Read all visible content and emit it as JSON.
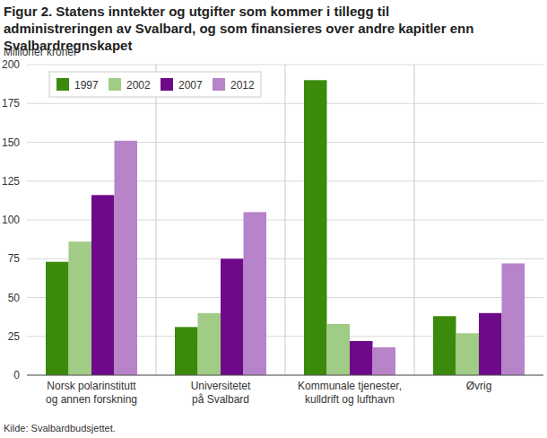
{
  "chart_data": {
    "type": "bar",
    "title": "Figur 2. Statens inntekter og utgifter som kommer i tillegg til administreringen av Svalbard, og som finansieres over andre kapitler enn Svalbardregnskapet",
    "y_label": "Millioner kroner",
    "source": "Kilde: Svalbardbudsjettet.",
    "categories": [
      "Norsk polarinstitutt og annen forskning",
      "Universitetet på Svalbard",
      "Kommunale tjenester, kulldrift og lufthavn",
      "Øvrig"
    ],
    "series": [
      {
        "name": "1997",
        "color": "#3b8a0b",
        "values": [
          73,
          31,
          190,
          38
        ]
      },
      {
        "name": "2002",
        "color": "#a0cc86",
        "values": [
          86,
          40,
          33,
          27
        ]
      },
      {
        "name": "2007",
        "color": "#6e0a8a",
        "values": [
          116,
          75,
          22,
          40
        ]
      },
      {
        "name": "2012",
        "color": "#b783c9",
        "values": [
          151,
          105,
          18,
          72
        ]
      }
    ],
    "ylim": [
      0,
      200
    ],
    "yticks": [
      0,
      25,
      50,
      75,
      100,
      125,
      150,
      175,
      200
    ],
    "grid": true,
    "legend": "upper left"
  }
}
